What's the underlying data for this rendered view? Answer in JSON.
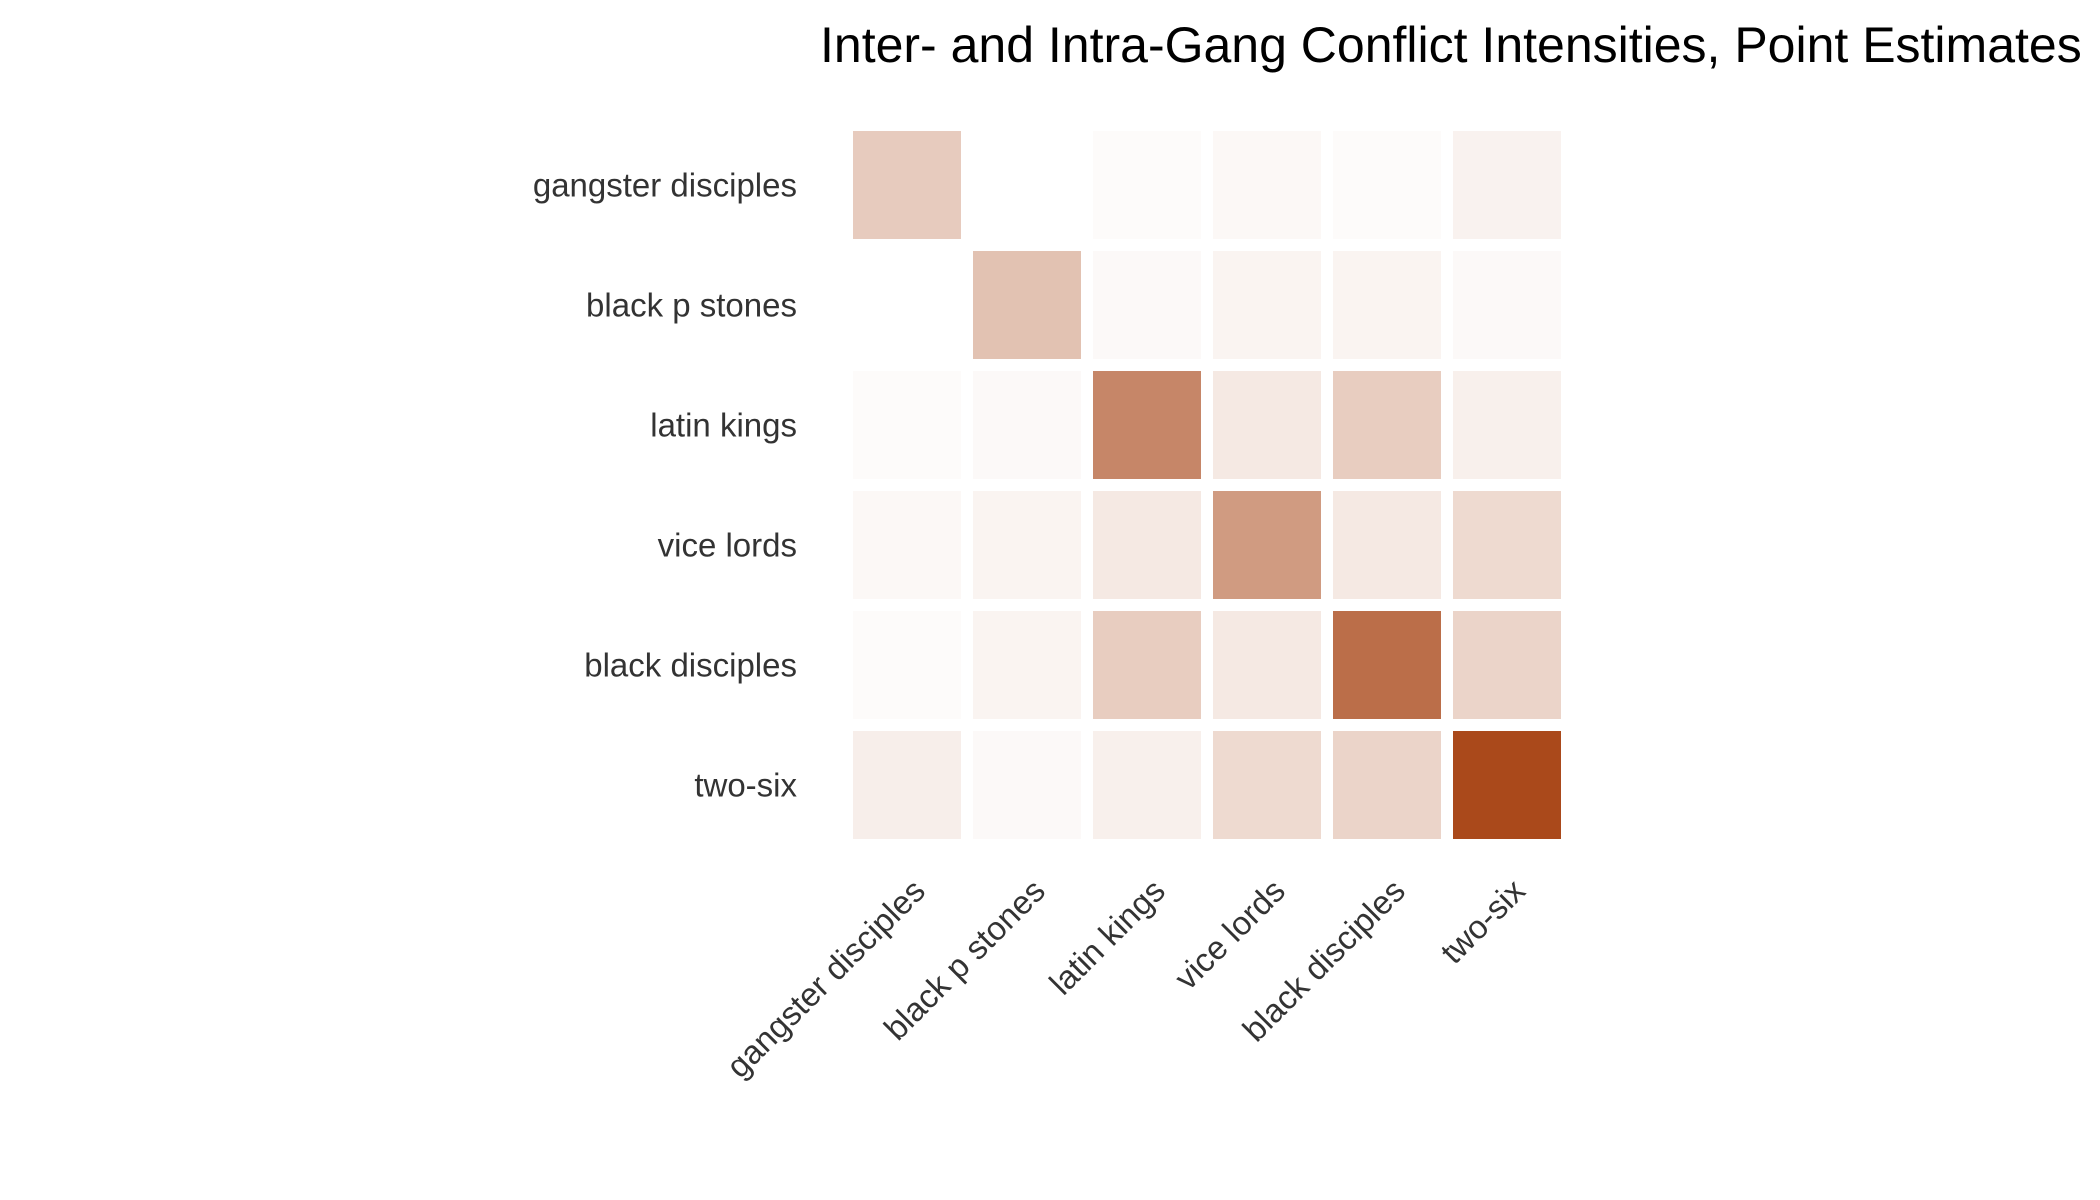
{
  "chart_data": {
    "type": "heatmap",
    "title": "Inter- and Intra-Gang Conflict Intensities, Point Estimates",
    "xlabel": "",
    "ylabel": "",
    "rows": [
      "gangster disciples",
      "black p stones",
      "latin kings",
      "vice lords",
      "black disciples",
      "two-six"
    ],
    "columns": [
      "gangster disciples",
      "black p stones",
      "latin kings",
      "vice lords",
      "black disciples",
      "two-six"
    ],
    "values": [
      [
        0.28,
        0.0,
        0.02,
        0.04,
        0.02,
        0.07
      ],
      [
        0.0,
        0.33,
        0.03,
        0.06,
        0.06,
        0.03
      ],
      [
        0.02,
        0.03,
        0.65,
        0.12,
        0.27,
        0.08
      ],
      [
        0.04,
        0.06,
        0.12,
        0.54,
        0.12,
        0.2
      ],
      [
        0.02,
        0.06,
        0.27,
        0.12,
        0.78,
        0.23
      ],
      [
        0.09,
        0.03,
        0.08,
        0.2,
        0.23,
        0.98
      ]
    ],
    "value_range": [
      0,
      1
    ],
    "color_low": "#ffffff",
    "color_high": "#a84516",
    "grid": false,
    "legend": "none"
  }
}
